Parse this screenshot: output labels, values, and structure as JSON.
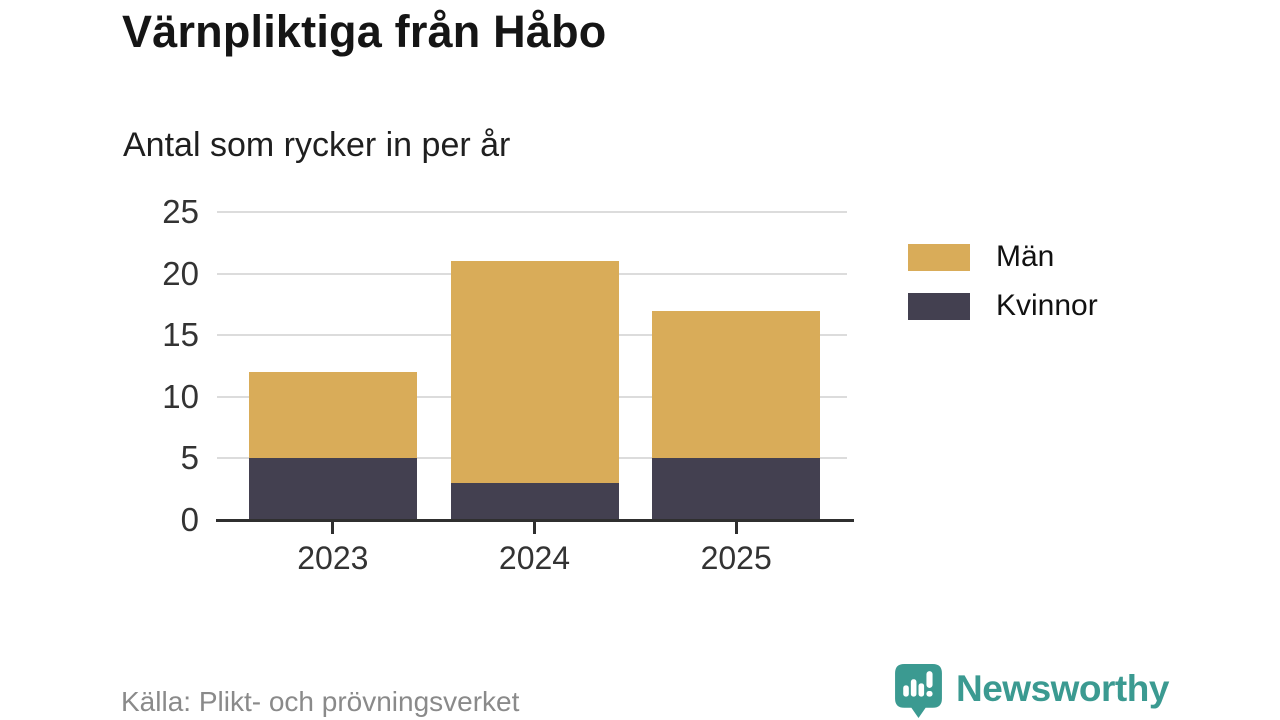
{
  "header": {
    "title": "Värnpliktiga från Håbo",
    "subtitle": "Antal som rycker in per år"
  },
  "footer": {
    "source": "Källa: Plikt- och prövningsverket",
    "logo_text": "Newsworthy"
  },
  "colors": {
    "men": "#d9ac59",
    "women": "#434050",
    "grid": "#dcdcdc",
    "axis": "#2f2f2f",
    "tick_label": "#333333",
    "title_text": "#151515",
    "legend_text": "#111111",
    "source_text": "#8a8a8a",
    "logo": "#3b9a91"
  },
  "chart_data": {
    "type": "bar",
    "stacked": true,
    "title": "Värnpliktiga från Håbo",
    "subtitle": "Antal som rycker in per år",
    "xlabel": "",
    "ylabel": "",
    "categories": [
      "2023",
      "2024",
      "2025"
    ],
    "series": [
      {
        "name": "Män",
        "color": "#d9ac59",
        "values": [
          7,
          18,
          12
        ]
      },
      {
        "name": "Kvinnor",
        "color": "#434050",
        "values": [
          5,
          3,
          5
        ]
      }
    ],
    "stack_totals": [
      12,
      21,
      17
    ],
    "stack_order_bottom_to_top": [
      "Kvinnor",
      "Män"
    ],
    "ylim": [
      0,
      25
    ],
    "y_ticks": [
      0,
      5,
      10,
      15,
      20,
      25
    ],
    "grid": true,
    "legend_position": "right"
  }
}
